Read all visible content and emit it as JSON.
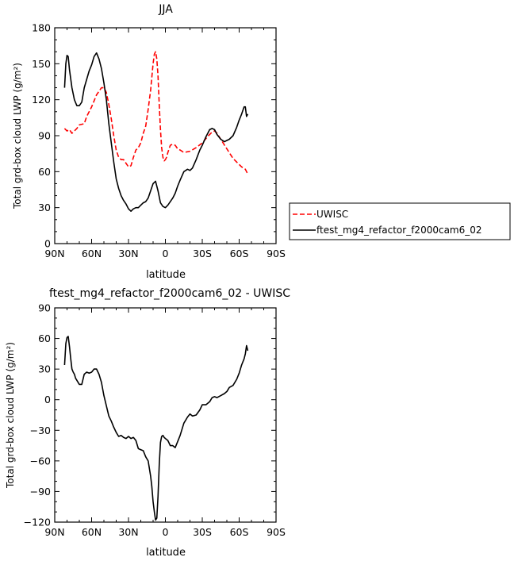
{
  "chart_data": [
    {
      "type": "line",
      "title": "JJA",
      "xlabel": "latitude",
      "ylabel": "Total grd-box cloud LWP (g/m²)",
      "xlim": [
        90,
        -90
      ],
      "ylim": [
        0,
        180
      ],
      "xticks": [
        90,
        60,
        30,
        0,
        -30,
        -60,
        -90
      ],
      "xtick_labels": [
        "90N",
        "60N",
        "30N",
        "0",
        "30S",
        "60S",
        "90S"
      ],
      "yticks": [
        0,
        30,
        60,
        90,
        120,
        150,
        180
      ],
      "ytick_labels": [
        "0",
        "30",
        "60",
        "90",
        "120",
        "150",
        "180"
      ],
      "legend": {
        "placement": "outside-right",
        "entries": [
          {
            "label": "UWISC",
            "series": 0
          },
          {
            "label": "ftest_mg4_refactor_f2000cam6_02",
            "series": 1
          }
        ]
      },
      "series": [
        {
          "name": "UWISC",
          "color": "#ff0000",
          "dash": true,
          "x": [
            82,
            80,
            78,
            76,
            74,
            72,
            70,
            66,
            64,
            60,
            56,
            52,
            50,
            48,
            46,
            44,
            42,
            40,
            38,
            36,
            34,
            32,
            30,
            28,
            26,
            24,
            22,
            20,
            18,
            16,
            14,
            12,
            10,
            9,
            8,
            7,
            6,
            5,
            4,
            3,
            2,
            1,
            0,
            -1,
            -2,
            -4,
            -6,
            -8,
            -10,
            -12,
            -15,
            -20,
            -25,
            -30,
            -35,
            -38,
            -40,
            -42,
            -45,
            -50,
            -55,
            -60,
            -62,
            -65,
            -67
          ],
          "y": [
            96,
            94,
            95,
            92,
            94,
            96,
            99,
            100,
            106,
            114,
            124,
            130,
            130,
            126,
            116,
            104,
            90,
            78,
            72,
            70,
            70,
            67,
            64,
            65,
            72,
            78,
            80,
            84,
            92,
            98,
            112,
            128,
            150,
            158,
            160,
            154,
            140,
            115,
            95,
            80,
            72,
            69,
            70,
            72,
            76,
            82,
            83,
            82,
            79,
            78,
            76,
            77,
            80,
            84,
            90,
            93,
            94,
            92,
            87,
            79,
            71,
            66,
            64,
            62,
            58
          ]
        },
        {
          "name": "ftest_mg4_refactor_f2000cam6_02",
          "color": "#000000",
          "dash": false,
          "x": [
            82,
            81,
            80,
            79,
            78,
            76,
            74,
            72,
            70,
            68,
            66,
            64,
            62,
            60,
            58,
            56,
            54,
            52,
            50,
            48,
            46,
            44,
            42,
            40,
            38,
            36,
            34,
            32,
            30,
            28,
            26,
            24,
            22,
            20,
            18,
            16,
            14,
            12,
            10,
            8,
            6,
            4,
            2,
            0,
            -2,
            -4,
            -6,
            -8,
            -10,
            -12,
            -15,
            -18,
            -20,
            -22,
            -25,
            -28,
            -30,
            -33,
            -36,
            -38,
            -40,
            -42,
            -45,
            -48,
            -50,
            -52,
            -55,
            -58,
            -60,
            -62,
            -64,
            -65,
            -66,
            -67
          ],
          "y": [
            130,
            150,
            157,
            156,
            145,
            130,
            120,
            115,
            115,
            118,
            130,
            137,
            144,
            149,
            156,
            159,
            154,
            146,
            134,
            120,
            100,
            84,
            68,
            54,
            46,
            40,
            36,
            33,
            29,
            27,
            29,
            30,
            30,
            32,
            34,
            35,
            38,
            44,
            50,
            52,
            44,
            34,
            31,
            30,
            32,
            35,
            38,
            42,
            48,
            53,
            60,
            62,
            61,
            63,
            70,
            78,
            82,
            89,
            95,
            96,
            95,
            91,
            87,
            85,
            86,
            87,
            90,
            97,
            103,
            108,
            114,
            114,
            106,
            108
          ]
        }
      ]
    },
    {
      "type": "line",
      "title": "ftest_mg4_refactor_f2000cam6_02 - UWISC",
      "xlabel": "latitude",
      "ylabel": "Total grd-box cloud LWP (g/m²)",
      "xlim": [
        90,
        -90
      ],
      "ylim": [
        -120,
        90
      ],
      "xticks": [
        90,
        60,
        30,
        0,
        -30,
        -60,
        -90
      ],
      "xtick_labels": [
        "90N",
        "60N",
        "30N",
        "0",
        "30S",
        "60S",
        "90S"
      ],
      "yticks": [
        -120,
        -90,
        -60,
        -30,
        0,
        30,
        60,
        90
      ],
      "ytick_labels": [
        "−120",
        "−90",
        "−60",
        "−30",
        "0",
        "30",
        "60",
        "90"
      ],
      "series": [
        {
          "color": "#000000",
          "dash": false,
          "x": [
            82,
            81,
            80,
            79,
            78,
            77,
            76,
            75,
            74,
            73,
            72,
            70,
            68,
            66,
            64,
            62,
            60,
            58,
            56,
            54,
            52,
            50,
            48,
            46,
            44,
            42,
            40,
            38,
            36,
            34,
            32,
            30,
            28,
            26,
            24,
            22,
            20,
            18,
            16,
            14,
            12,
            11,
            10,
            9,
            8,
            7,
            6,
            5,
            4,
            3,
            2,
            1,
            0,
            -2,
            -4,
            -6,
            -8,
            -10,
            -12,
            -15,
            -18,
            -20,
            -22,
            -25,
            -28,
            -30,
            -33,
            -36,
            -38,
            -40,
            -42,
            -45,
            -48,
            -50,
            -52,
            -55,
            -58,
            -60,
            -62,
            -64,
            -65,
            -66,
            -67
          ],
          "y": [
            34,
            55,
            61,
            62,
            52,
            40,
            30,
            27,
            25,
            21,
            19,
            15,
            15,
            25,
            27,
            26,
            27,
            30,
            30,
            25,
            17,
            4,
            -6,
            -16,
            -21,
            -27,
            -32,
            -36,
            -35,
            -37,
            -38,
            -36,
            -38,
            -37,
            -40,
            -48,
            -49,
            -50,
            -56,
            -60,
            -75,
            -85,
            -100,
            -110,
            -118,
            -116,
            -95,
            -63,
            -42,
            -36,
            -35,
            -37,
            -38,
            -40,
            -45,
            -45,
            -47,
            -41,
            -35,
            -23,
            -17,
            -14,
            -16,
            -15,
            -10,
            -5,
            -5,
            -2,
            2,
            3,
            2,
            4,
            6,
            8,
            12,
            14,
            20,
            26,
            34,
            40,
            45,
            53,
            48
          ]
        }
      ]
    }
  ]
}
